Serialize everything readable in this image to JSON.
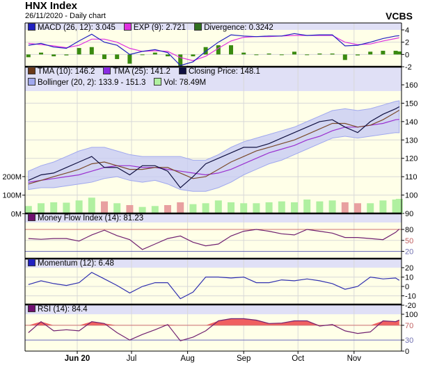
{
  "header": {
    "title": "HNX Index",
    "subtitle": "26/11/2020 - Daily chart",
    "brand": "VCBS"
  },
  "legends": {
    "macd": [
      {
        "label": "MACD (26, 12): 3.045",
        "color": "#2020c0"
      },
      {
        "label": "EXP (9): 2.721",
        "color": "#e030e0"
      },
      {
        "label": "Divergence: 0.3242",
        "color": "#307020"
      }
    ],
    "main1": [
      {
        "label": "TMA (10): 146.2",
        "color": "#6b3a1a"
      },
      {
        "label": "TMA (25): 141.2",
        "color": "#8a2be2"
      },
      {
        "label": "Closing Price: 148.1",
        "color": "#101040"
      }
    ],
    "main2": [
      {
        "label": "Bollinger (20, 2): 133.9 - 151.3",
        "color": "#a0a8ee"
      },
      {
        "label": "Vol: 78.49M",
        "color": "#b0f0a0"
      }
    ],
    "mfi": [
      {
        "label": "Money Flow Index (14): 81.23",
        "color": "#701070"
      }
    ],
    "mom": [
      {
        "label": "Momentum (12): 6.48",
        "color": "#2020c0"
      }
    ],
    "rsi": [
      {
        "label": "RSI (14): 84.4",
        "color": "#701070"
      }
    ]
  },
  "chart_data": {
    "type": "line",
    "x_ticks": [
      {
        "label": "Jun 20",
        "date": "2020-06-01"
      },
      {
        "label": "Jul",
        "date": "2020-07-01"
      },
      {
        "label": "Aug",
        "date": "2020-08-01"
      },
      {
        "label": "Sep",
        "date": "2020-09-01"
      },
      {
        "label": "Oct",
        "date": "2020-10-01"
      },
      {
        "label": "Nov",
        "date": "2020-11-01"
      }
    ],
    "dates": [
      "2020-05-05",
      "2020-05-12",
      "2020-05-19",
      "2020-05-26",
      "2020-06-02",
      "2020-06-09",
      "2020-06-16",
      "2020-06-23",
      "2020-06-30",
      "2020-07-07",
      "2020-07-14",
      "2020-07-21",
      "2020-07-28",
      "2020-08-04",
      "2020-08-11",
      "2020-08-18",
      "2020-08-25",
      "2020-09-01",
      "2020-09-08",
      "2020-09-15",
      "2020-09-22",
      "2020-09-29",
      "2020-10-06",
      "2020-10-13",
      "2020-10-20",
      "2020-10-27",
      "2020-11-03",
      "2020-11-10",
      "2020-11-17",
      "2020-11-24",
      "2020-11-26"
    ],
    "close": [
      108,
      111,
      112,
      115,
      118,
      121,
      115,
      115,
      111,
      116,
      116,
      113,
      104,
      110,
      117,
      120,
      123,
      126,
      126,
      128,
      131,
      134,
      137,
      140,
      141,
      137,
      134,
      140,
      144,
      147,
      148.1
    ],
    "tma10": [
      106,
      108,
      110,
      112,
      114,
      117,
      118,
      116,
      114,
      114,
      115,
      115,
      112,
      109,
      110,
      114,
      118,
      121,
      124,
      126,
      128,
      130,
      133,
      136,
      139,
      139,
      137,
      138,
      141,
      145,
      146.2
    ],
    "tma25": [
      107,
      108,
      109,
      110,
      111,
      113,
      115,
      116,
      116,
      115,
      115,
      114,
      113,
      112,
      111,
      112,
      114,
      117,
      120,
      123,
      125,
      127,
      130,
      132,
      135,
      137,
      137,
      138,
      139,
      141,
      141.2
    ],
    "boll_upper": [
      113,
      116,
      118,
      121,
      124,
      126,
      126,
      124,
      122,
      121,
      121,
      121,
      121,
      119,
      119,
      122,
      126,
      129,
      131,
      133,
      135,
      137,
      140,
      143,
      146,
      147,
      146,
      147,
      149,
      151,
      151.3
    ],
    "boll_lower": [
      103,
      104,
      104,
      105,
      106,
      107,
      109,
      110,
      108,
      107,
      108,
      106,
      103,
      102,
      102,
      104,
      107,
      111,
      114,
      117,
      119,
      122,
      125,
      128,
      131,
      132,
      131,
      132,
      133,
      134,
      133.9
    ],
    "volume_m": [
      40,
      55,
      60,
      58,
      70,
      85,
      65,
      55,
      45,
      35,
      40,
      45,
      60,
      50,
      55,
      70,
      60,
      55,
      55,
      60,
      65,
      60,
      75,
      65,
      70,
      60,
      55,
      55,
      70,
      75,
      78.49
    ],
    "macd": [
      1.5,
      1.8,
      1.2,
      1.0,
      2.2,
      3.3,
      2.0,
      1.5,
      0.0,
      0.5,
      0.8,
      0.3,
      -1.8,
      -1.2,
      0.5,
      2.0,
      3.2,
      3.0,
      2.9,
      3.0,
      3.0,
      3.4,
      3.1,
      3.2,
      3.2,
      1.4,
      1.5,
      2.0,
      2.6,
      3.0,
      3.045
    ],
    "signal": [
      1.8,
      1.6,
      1.4,
      1.1,
      1.5,
      2.5,
      2.5,
      2.0,
      1.0,
      0.5,
      0.6,
      0.5,
      -0.5,
      -1.0,
      -0.3,
      1.0,
      2.2,
      2.8,
      2.9,
      2.9,
      3.0,
      3.1,
      3.1,
      3.1,
      3.1,
      2.0,
      1.6,
      1.7,
      2.2,
      2.6,
      2.721
    ],
    "mfi": [
      55,
      53,
      55,
      55,
      48,
      65,
      78,
      63,
      52,
      25,
      40,
      55,
      62,
      45,
      35,
      40,
      62,
      75,
      80,
      75,
      68,
      65,
      80,
      75,
      70,
      58,
      58,
      55,
      52,
      72,
      81.23
    ],
    "momentum": [
      2,
      6,
      3,
      1,
      4,
      15,
      8,
      1,
      -7,
      0,
      4,
      4,
      -13,
      -6,
      10,
      10,
      9,
      10,
      4,
      4,
      7,
      6,
      8,
      6,
      3,
      -3,
      0,
      10,
      8,
      9,
      6.48
    ],
    "rsi": [
      50,
      80,
      55,
      58,
      55,
      80,
      75,
      50,
      30,
      45,
      58,
      72,
      28,
      38,
      55,
      82,
      88,
      88,
      84,
      75,
      76,
      82,
      82,
      68,
      72,
      55,
      48,
      52,
      82,
      80,
      84.4
    ],
    "panels": {
      "macd": {
        "ylim": [
          -2,
          4
        ],
        "ticks": [
          "4",
          "2",
          "0",
          "-2"
        ]
      },
      "main": {
        "ylim": [
          90,
          160
        ],
        "ticks": [
          "160",
          "150",
          "140",
          "130",
          "120",
          "110",
          "100",
          "90"
        ],
        "vol_ticks": [
          "200M",
          "100M",
          "0M"
        ]
      },
      "mfi": {
        "ylim": [
          0,
          100
        ],
        "ticks": [
          "80",
          "50",
          "20"
        ],
        "levels": [
          80,
          20
        ]
      },
      "mom": {
        "ylim": [
          -20,
          20
        ],
        "ticks": [
          "20",
          "10",
          "0",
          "-10",
          "-20"
        ]
      },
      "rsi": {
        "ylim": [
          0,
          100
        ],
        "ticks": [
          "100",
          "70",
          "30",
          "0"
        ],
        "levels": [
          70,
          30
        ]
      }
    },
    "colors": {
      "plot_bg": "#ffffe8",
      "legend_bg": "#e0e0f6",
      "up": "#b0f0a0",
      "down": "#e8a0a0",
      "rsi_fill": "#f06060"
    }
  }
}
